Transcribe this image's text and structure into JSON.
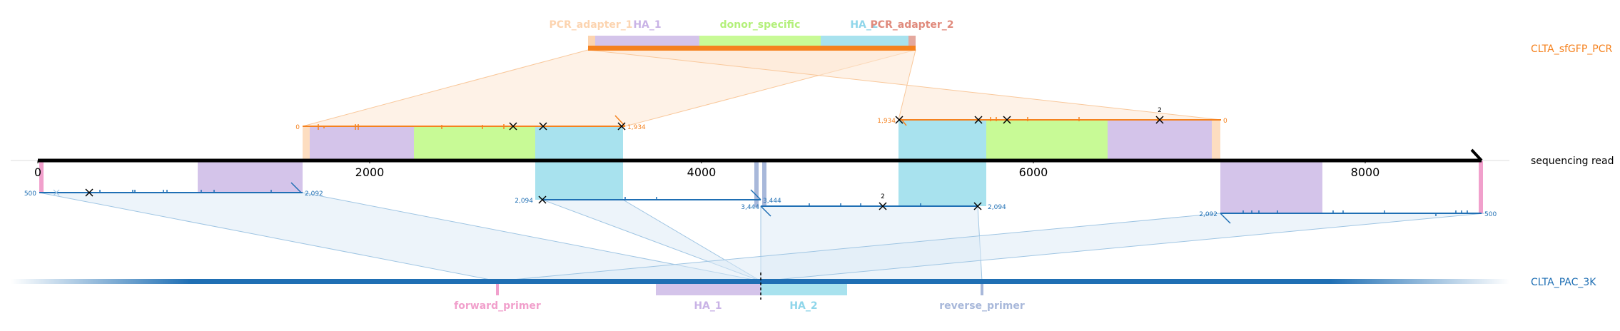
{
  "tracks": {
    "top": "CLTA_sfGFP_PCR",
    "middle": "sequencing read",
    "bottom": "CLTA_PAC_3K"
  },
  "top_features": [
    "PCR_adapter_1",
    "HA_1",
    "donor_specific",
    "HA_2",
    "PCR_adapter_2"
  ],
  "bottom_features": [
    "forward_primer",
    "HA_1",
    "HA_2",
    "reverse_primer"
  ],
  "axis_ticks": [
    "0",
    "2000",
    "4000",
    "6000",
    "8000"
  ],
  "alignment_labels": {
    "top_left_start": "0",
    "top_left_end": "1,934",
    "top_right_start": "1,934",
    "top_right_end": "0",
    "top_right_marker": "2",
    "bottom_left_start": "500",
    "bottom_left_end": "2,092",
    "bottom_mid1_start": "2,094",
    "bottom_mid1_end": "3,444",
    "bottom_mid2_start": "3,444",
    "bottom_mid2_end": "2,094",
    "bottom_mid2_marker": "2",
    "bottom_right_start": "2,092",
    "bottom_right_end": "500"
  },
  "colors": {
    "top": "#f5821f",
    "bottom": "#1f6fb4",
    "ha1": "#d4c4ea",
    "donor": "#c8fa96",
    "ha2": "#a8e2ee",
    "adapter1": "#fcd4b0",
    "adapter2": "#e4a89e",
    "primer_f": "#f1a0cc",
    "primer_r": "#a8b8da"
  }
}
